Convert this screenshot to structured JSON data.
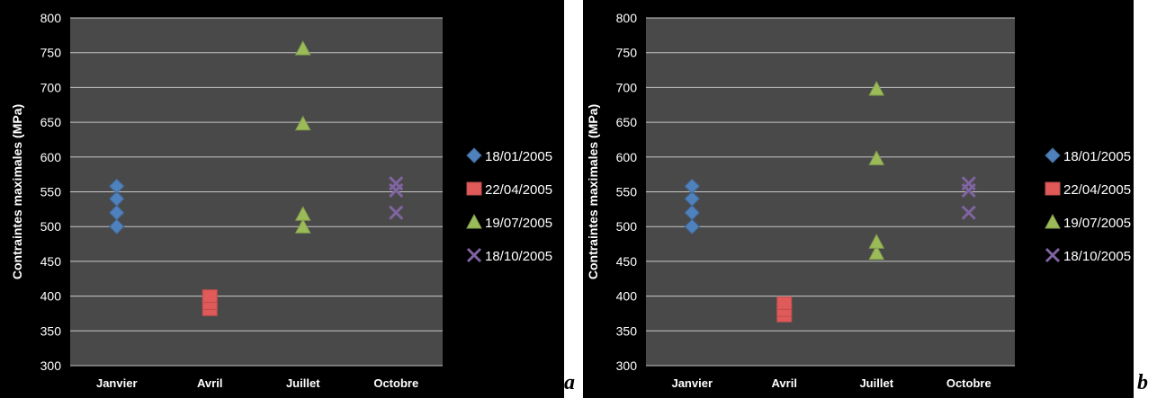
{
  "chart_data": [
    {
      "type": "scatter",
      "panel_label": "a",
      "title": "",
      "xlabel": "",
      "ylabel": "Contraintes maximales  (MPa)",
      "categories": [
        "Janvier",
        "Avril",
        "Juillet",
        "Octobre"
      ],
      "ylim": [
        300,
        800
      ],
      "yticks": [
        300,
        350,
        400,
        450,
        500,
        550,
        600,
        650,
        700,
        750,
        800
      ],
      "grid": true,
      "legend_position": "right",
      "series": [
        {
          "name": "18/01/2005",
          "marker": "diamond",
          "color": "#4f81bd",
          "category": "Janvier",
          "values": [
            500,
            520,
            540,
            558
          ]
        },
        {
          "name": "22/04/2005",
          "marker": "square",
          "color": "#e05a5a",
          "category": "Avril",
          "values": [
            381,
            390,
            400
          ]
        },
        {
          "name": "19/07/2005",
          "marker": "triangle",
          "color": "#9bbb59",
          "category": "Juillet",
          "values": [
            500,
            518,
            648,
            756
          ]
        },
        {
          "name": "18/10/2005",
          "marker": "x",
          "color": "#8064a2",
          "category": "Octobre",
          "values": [
            520,
            552,
            562
          ]
        }
      ]
    },
    {
      "type": "scatter",
      "panel_label": "b",
      "title": "",
      "xlabel": "",
      "ylabel": "Contraintes maximales  (MPa)",
      "categories": [
        "Janvier",
        "Avril",
        "Juillet",
        "Octobre"
      ],
      "ylim": [
        300,
        800
      ],
      "yticks": [
        300,
        350,
        400,
        450,
        500,
        550,
        600,
        650,
        700,
        750,
        800
      ],
      "grid": true,
      "legend_position": "right",
      "series": [
        {
          "name": "18/01/2005",
          "marker": "diamond",
          "color": "#4f81bd",
          "category": "Janvier",
          "values": [
            500,
            520,
            540,
            558
          ]
        },
        {
          "name": "22/04/2005",
          "marker": "square",
          "color": "#e05a5a",
          "category": "Avril",
          "values": [
            372,
            380,
            390
          ]
        },
        {
          "name": "19/07/2005",
          "marker": "triangle",
          "color": "#9bbb59",
          "category": "Juillet",
          "values": [
            462,
            478,
            598,
            698
          ]
        },
        {
          "name": "18/10/2005",
          "marker": "x",
          "color": "#8064a2",
          "category": "Octobre",
          "values": [
            520,
            552,
            562
          ]
        }
      ]
    }
  ]
}
